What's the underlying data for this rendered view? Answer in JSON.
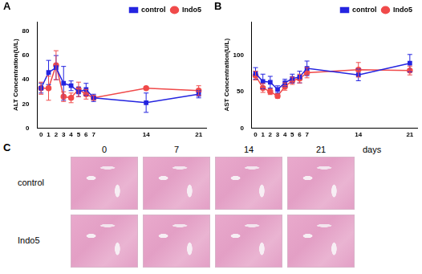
{
  "chart_data": [
    {
      "type": "line",
      "panel": "A",
      "y_label": "ALT Concentration(U/L)",
      "x": [
        0,
        1,
        2,
        3,
        4,
        5,
        6,
        7,
        14,
        21
      ],
      "xlim": [
        -0.5,
        22
      ],
      "xticks": [
        0,
        1,
        2,
        3,
        4,
        5,
        6,
        7,
        14,
        21
      ],
      "ylim": [
        0,
        88
      ],
      "yticks": [
        0,
        20,
        40,
        60,
        80
      ],
      "grid": false,
      "legend": "top-right",
      "series": [
        {
          "name": "control",
          "color": "#2424e0",
          "marker": "square",
          "values": [
            33,
            46,
            50,
            37,
            35,
            30,
            32,
            25,
            21,
            28
          ],
          "errors": [
            4,
            10,
            10,
            14,
            4,
            4,
            5,
            3,
            8,
            3
          ]
        },
        {
          "name": "Indo5",
          "color": "#f04a4a",
          "marker": "circle",
          "values": [
            33,
            33,
            52,
            26,
            25,
            32,
            28,
            25,
            33,
            31
          ],
          "errors": [
            5,
            10,
            12,
            4,
            4,
            6,
            4,
            2,
            1,
            4
          ]
        }
      ]
    },
    {
      "type": "line",
      "panel": "B",
      "y_label": "AST Concentration(U/L)",
      "x": [
        0,
        1,
        2,
        3,
        4,
        5,
        6,
        7,
        14,
        21
      ],
      "xlim": [
        -0.5,
        22
      ],
      "xticks": [
        0,
        1,
        2,
        3,
        4,
        5,
        6,
        7,
        14,
        21
      ],
      "ylim": [
        0,
        146
      ],
      "yticks": [
        0,
        50,
        100
      ],
      "grid": false,
      "legend": "top-right",
      "series": [
        {
          "name": "control",
          "color": "#2424e0",
          "marker": "square",
          "values": [
            75,
            64,
            63,
            53,
            62,
            68,
            70,
            82,
            73,
            89
          ],
          "errors": [
            8,
            10,
            8,
            5,
            5,
            6,
            8,
            10,
            8,
            12
          ]
        },
        {
          "name": "Indo5",
          "color": "#f04a4a",
          "marker": "circle",
          "values": [
            72,
            55,
            50,
            44,
            57,
            65,
            68,
            76,
            80,
            79
          ],
          "errors": [
            6,
            6,
            4,
            3,
            5,
            5,
            6,
            7,
            10,
            6
          ]
        }
      ]
    }
  ],
  "image_panel": {
    "panel": "C",
    "columns": [
      0,
      7,
      14,
      21
    ],
    "column_label": "days",
    "rows": [
      "control",
      "Indo5"
    ]
  }
}
